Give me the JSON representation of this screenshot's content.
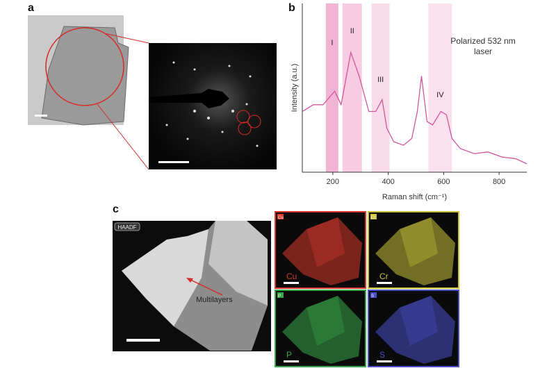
{
  "panel_labels": [
    "a",
    "b",
    "c"
  ],
  "chart_data": {
    "type": "line",
    "xlabel": "Raman shift (cm⁻¹)",
    "ylabel": "Intensity (a.u.)",
    "annotation": [
      "Polarized 532 nm",
      "laser"
    ],
    "x": [
      90,
      130,
      165,
      207,
      230,
      265,
      295,
      330,
      355,
      378,
      395,
      420,
      455,
      485,
      505,
      520,
      540,
      560,
      590,
      610,
      630,
      660,
      710,
      760,
      810,
      860,
      900
    ],
    "series": [
      {
        "color": "#d4559e",
        "values": [
          36,
          40,
          40,
          48,
          40,
          71,
          57,
          36,
          36,
          43,
          26,
          18,
          16,
          20,
          36,
          57,
          30,
          28,
          36,
          34,
          20,
          14,
          11,
          12,
          9,
          8,
          5
        ]
      }
    ],
    "bands": [
      {
        "label": "I",
        "range": [
          175,
          220
        ],
        "color": "#f2b4d4"
      },
      {
        "label": "II",
        "range": [
          235,
          305
        ],
        "color": "#f7cbe0"
      },
      {
        "label": "III",
        "range": [
          340,
          405
        ],
        "color": "#fadbe9"
      },
      {
        "label": "IV",
        "range": [
          545,
          630
        ],
        "color": "#fbe1ee"
      }
    ],
    "xlim": [
      90,
      900
    ],
    "ylim": [
      0,
      100
    ],
    "xticks": [
      200,
      400,
      600,
      800
    ]
  },
  "panel_c": {
    "haadf_label": "HAADF",
    "annotation": "Multilayers",
    "maps": [
      {
        "element": "Cu",
        "color": "#d83a2e"
      },
      {
        "element": "Cr",
        "color": "#c9c23a"
      },
      {
        "element": "P",
        "color": "#3aa84a"
      },
      {
        "element": "S",
        "color": "#4a50c8"
      }
    ]
  }
}
